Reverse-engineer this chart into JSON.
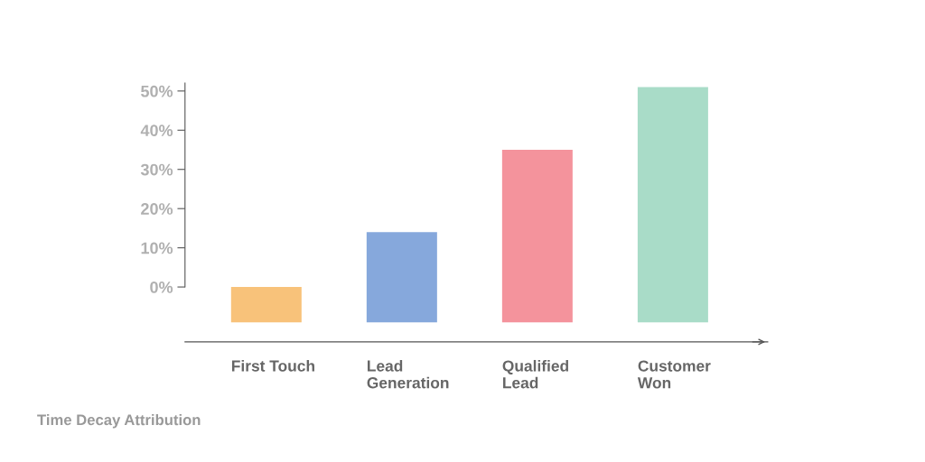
{
  "chart_data": {
    "type": "bar",
    "title": "Time Decay Attribution",
    "categories": [
      "First Touch",
      "Lead\nGeneration",
      "Qualified\nLead",
      "Customer\nWon"
    ],
    "values": [
      9,
      23,
      44,
      60
    ],
    "base": [
      -9,
      -9,
      -9,
      -9
    ],
    "colors": [
      "#f8c27a",
      "#86a8dc",
      "#f4939c",
      "#a9dcc8"
    ],
    "ylim": [
      -14,
      52
    ],
    "yticks": [
      {
        "value": 0,
        "label": "0%"
      },
      {
        "value": 10,
        "label": "10%"
      },
      {
        "value": 20,
        "label": "20%"
      },
      {
        "value": 30,
        "label": "30%"
      },
      {
        "value": 40,
        "label": "40%"
      },
      {
        "value": 50,
        "label": "50%"
      }
    ],
    "grid": false
  }
}
